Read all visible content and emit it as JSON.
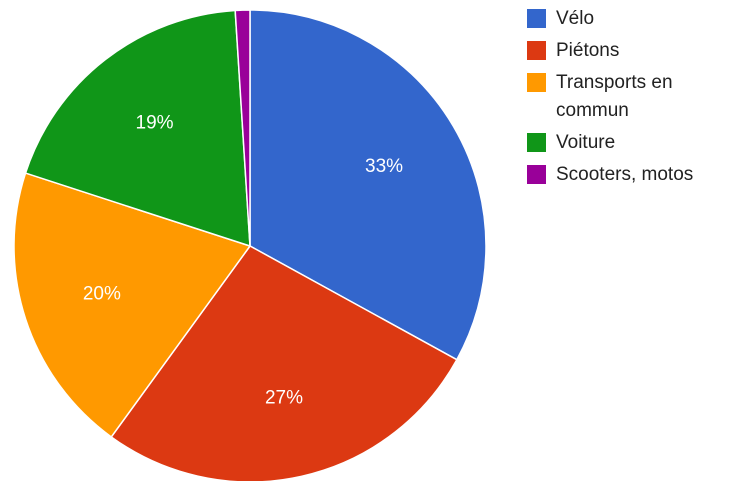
{
  "chart_data": {
    "type": "pie",
    "labels": [
      "Vélo",
      "Piétons",
      "Transports en commun",
      "Voiture",
      "Scooters, motos"
    ],
    "values": [
      33,
      27,
      20,
      19,
      1
    ],
    "display_labels": [
      "33%",
      "27%",
      "20%",
      "19%",
      ""
    ],
    "colors": [
      "#3366cc",
      "#dc3912",
      "#ff9900",
      "#109618",
      "#990099"
    ],
    "legend": {
      "position": "right",
      "entries": [
        {
          "lines": [
            "Vélo"
          ]
        },
        {
          "lines": [
            "Piétons"
          ]
        },
        {
          "lines": [
            "Transports en",
            "commun"
          ]
        },
        {
          "lines": [
            "Voiture"
          ]
        },
        {
          "lines": [
            "Scooters, motos"
          ]
        }
      ]
    },
    "title": "",
    "start": "top",
    "direction": "clockwise"
  }
}
